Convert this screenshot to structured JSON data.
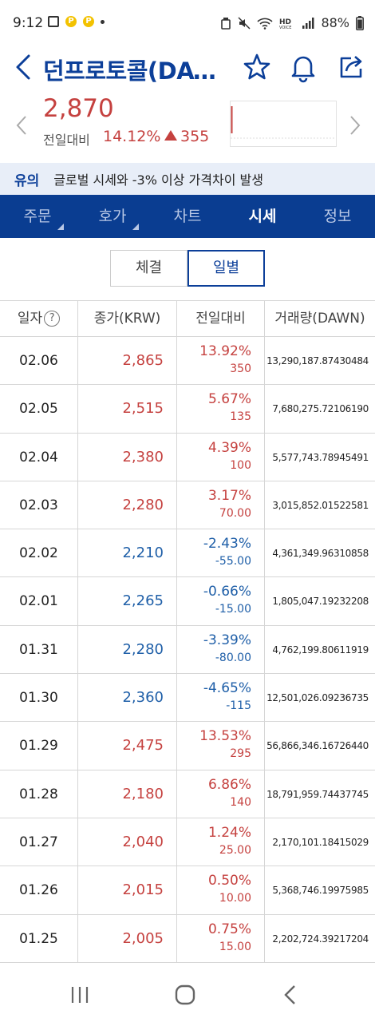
{
  "status": {
    "time": "9:12",
    "battery": "88%"
  },
  "header": {
    "title": "던프로토콜(DAWN)"
  },
  "summary": {
    "price": "2,870",
    "change_label": "전일대비",
    "change_pct": "14.12%",
    "change_abs": "355"
  },
  "warning": {
    "tag": "유의",
    "message": "글로벌 시세와 -3% 이상 가격차이 발생"
  },
  "tabs": [
    "주문",
    "호가",
    "차트",
    "시세",
    "정보"
  ],
  "active_tab": "시세",
  "segment": {
    "options": [
      "체결",
      "일별"
    ],
    "active": "일별"
  },
  "table": {
    "headers": [
      "일자",
      "종가(KRW)",
      "전일대비",
      "거래량(DAWN)"
    ],
    "rows": [
      {
        "date": "02.06",
        "close": "2,865",
        "pct": "13.92%",
        "abs": "350",
        "volume": "13,290,187.87430484",
        "dir": "up"
      },
      {
        "date": "02.05",
        "close": "2,515",
        "pct": "5.67%",
        "abs": "135",
        "volume": "7,680,275.72106190",
        "dir": "up"
      },
      {
        "date": "02.04",
        "close": "2,380",
        "pct": "4.39%",
        "abs": "100",
        "volume": "5,577,743.78945491",
        "dir": "up"
      },
      {
        "date": "02.03",
        "close": "2,280",
        "pct": "3.17%",
        "abs": "70.00",
        "volume": "3,015,852.01522581",
        "dir": "up"
      },
      {
        "date": "02.02",
        "close": "2,210",
        "pct": "-2.43%",
        "abs": "-55.00",
        "volume": "4,361,349.96310858",
        "dir": "down"
      },
      {
        "date": "02.01",
        "close": "2,265",
        "pct": "-0.66%",
        "abs": "-15.00",
        "volume": "1,805,047.19232208",
        "dir": "down"
      },
      {
        "date": "01.31",
        "close": "2,280",
        "pct": "-3.39%",
        "abs": "-80.00",
        "volume": "4,762,199.80611919",
        "dir": "down"
      },
      {
        "date": "01.30",
        "close": "2,360",
        "pct": "-4.65%",
        "abs": "-115",
        "volume": "12,501,026.09236735",
        "dir": "down"
      },
      {
        "date": "01.29",
        "close": "2,475",
        "pct": "13.53%",
        "abs": "295",
        "volume": "56,866,346.16726440",
        "dir": "up"
      },
      {
        "date": "01.28",
        "close": "2,180",
        "pct": "6.86%",
        "abs": "140",
        "volume": "18,791,959.74437745",
        "dir": "up"
      },
      {
        "date": "01.27",
        "close": "2,040",
        "pct": "1.24%",
        "abs": "25.00",
        "volume": "2,170,101.18415029",
        "dir": "up"
      },
      {
        "date": "01.26",
        "close": "2,015",
        "pct": "0.50%",
        "abs": "10.00",
        "volume": "5,368,746.19975985",
        "dir": "up"
      },
      {
        "date": "01.25",
        "close": "2,005",
        "pct": "0.75%",
        "abs": "15.00",
        "volume": "2,202,724.39217204",
        "dir": "up"
      }
    ]
  },
  "colors": {
    "brand_blue": "#0a3d91",
    "up_red": "#c5413f",
    "down_blue": "#1f5fa8"
  }
}
